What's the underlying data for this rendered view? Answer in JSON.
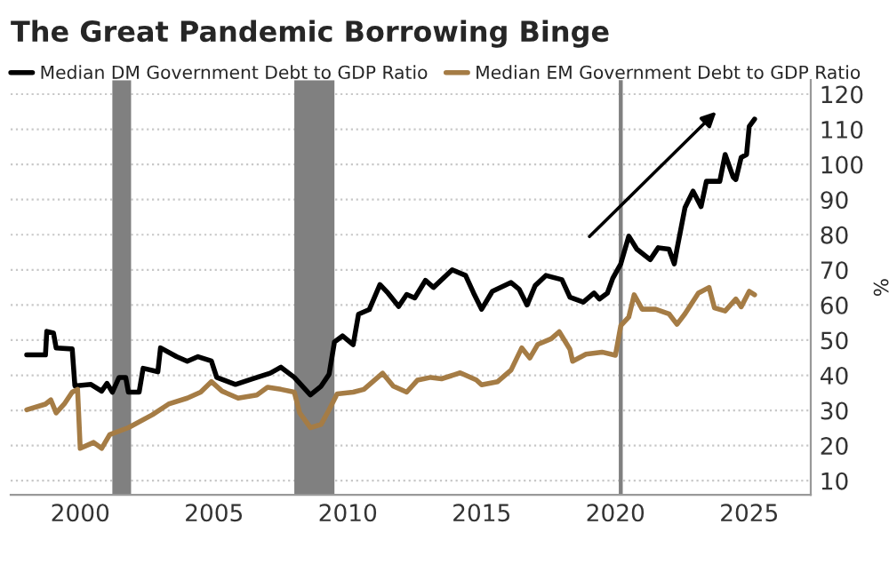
{
  "chart_data": {
    "type": "line",
    "title": "The Great Pandemic Borrowing Binge",
    "ylabel": "%",
    "xlim": [
      1997.4,
      2027.3
    ],
    "xticks": [
      2000,
      2005,
      2010,
      2015,
      2020,
      2025
    ],
    "ylim": [
      6,
      124
    ],
    "yticks": [
      10,
      20,
      30,
      40,
      50,
      60,
      70,
      80,
      90,
      100,
      110,
      120
    ],
    "grid": "y",
    "legend": "top left",
    "marker": "none",
    "line_style": "solid",
    "bands": [
      {
        "axis": "x",
        "from": 2001.2,
        "to": 2001.9,
        "color": "#808080"
      },
      {
        "axis": "x",
        "from": 2008.0,
        "to": 2009.5,
        "color": "#808080"
      }
    ],
    "ref_lines": [
      {
        "axis": "x",
        "value": 2020.2,
        "color": "#808080"
      }
    ],
    "series": [
      {
        "name": "Median DM Government Debt to GDP Ratio",
        "color": "#000000",
        "x": [
          1998.0,
          1998.7,
          1998.75,
          1999.0,
          1999.1,
          1999.7,
          1999.8,
          2000.4,
          2000.8,
          2001.0,
          2001.2,
          2001.45,
          2001.7,
          2001.8,
          2002.2,
          2002.35,
          2002.9,
          2003.0,
          2003.6,
          2004.0,
          2004.4,
          2004.9,
          2005.1,
          2005.8,
          2006.4,
          2007.1,
          2007.5,
          2008.0,
          2008.6,
          2009.0,
          2009.3,
          2009.5,
          2009.8,
          2010.2,
          2010.4,
          2010.8,
          2011.2,
          2011.5,
          2011.9,
          2012.2,
          2012.5,
          2012.9,
          2013.2,
          2013.9,
          2014.4,
          2014.7,
          2015.0,
          2015.4,
          2016.1,
          2016.4,
          2016.7,
          2017.0,
          2017.4,
          2018.0,
          2018.3,
          2018.8,
          2019.2,
          2019.4,
          2019.7,
          2019.9,
          2020.2,
          2020.5,
          2020.8,
          2021.3,
          2021.6,
          2022.0,
          2022.2,
          2022.3,
          2022.6,
          2022.9,
          2023.2,
          2023.4,
          2023.9,
          2024.1,
          2024.4,
          2024.5,
          2024.7,
          2024.9,
          2025.0,
          2025.2
        ],
        "values": [
          45.8,
          45.8,
          52.5,
          52,
          47.8,
          47.5,
          37,
          37.4,
          35.5,
          37.7,
          35.2,
          39.4,
          39.4,
          35.2,
          35.2,
          42,
          41,
          47.8,
          45.3,
          44,
          45.3,
          44.1,
          39.4,
          37.4,
          38.9,
          40.6,
          42.3,
          39.4,
          34.4,
          36.9,
          40.3,
          49.5,
          51.2,
          48.7,
          57.4,
          58.7,
          65.8,
          63.4,
          59.6,
          63,
          62,
          67,
          65,
          70,
          68.4,
          63.4,
          58.8,
          63.9,
          66.4,
          64.5,
          60,
          65.5,
          68.4,
          67.2,
          62.2,
          60.8,
          63.4,
          61.7,
          63.4,
          67.6,
          71.7,
          79.6,
          75.9,
          72.9,
          76.3,
          75.9,
          71.7,
          75.9,
          87.7,
          92.4,
          88,
          95.2,
          95.2,
          102.8,
          96.4,
          95.7,
          102,
          102.8,
          110.8,
          112.9
        ]
      },
      {
        "name": "Median EM Government Debt to GDP Ratio",
        "color": "#a57c45",
        "x": [
          1998.0,
          1998.7,
          1998.9,
          1999.1,
          1999.4,
          1999.7,
          1999.9,
          2000.0,
          2000.5,
          2000.8,
          2001.1,
          2001.8,
          2002.7,
          2003.3,
          2004.0,
          2004.5,
          2004.9,
          2005.3,
          2005.9,
          2006.6,
          2007.0,
          2007.5,
          2008.0,
          2008.2,
          2008.6,
          2009.0,
          2009.3,
          2009.6,
          2010.2,
          2010.6,
          2011.3,
          2011.7,
          2012.2,
          2012.6,
          2013.1,
          2013.5,
          2014.2,
          2014.8,
          2015.0,
          2015.6,
          2016.1,
          2016.5,
          2016.8,
          2017.1,
          2017.6,
          2017.9,
          2018.3,
          2018.4,
          2018.9,
          2019.5,
          2020.0,
          2020.2,
          2020.5,
          2020.7,
          2021.0,
          2021.5,
          2022.0,
          2022.3,
          2022.6,
          2023.1,
          2023.5,
          2023.7,
          2024.1,
          2024.5,
          2024.7,
          2025.0,
          2025.2
        ],
        "values": [
          30.2,
          31.8,
          33,
          29.3,
          31.8,
          35.2,
          36,
          19.2,
          20.9,
          19.2,
          23.1,
          25.1,
          28.8,
          31.8,
          33.5,
          35.2,
          38.2,
          35.5,
          33.5,
          34.4,
          36.6,
          36,
          35.2,
          29.3,
          25.1,
          26,
          30.2,
          34.7,
          35.2,
          36,
          40.6,
          36.9,
          35.2,
          38.6,
          39.4,
          39,
          40.7,
          38.7,
          37.3,
          38.2,
          41.5,
          47.8,
          44.9,
          48.8,
          50.4,
          52.4,
          47.4,
          44,
          46,
          46.6,
          45.7,
          54.1,
          56.6,
          62.9,
          58.8,
          58.8,
          57.5,
          54.5,
          57.5,
          63.4,
          65,
          59.2,
          58.3,
          61.7,
          59.5,
          63.9,
          62.9
        ]
      }
    ]
  }
}
